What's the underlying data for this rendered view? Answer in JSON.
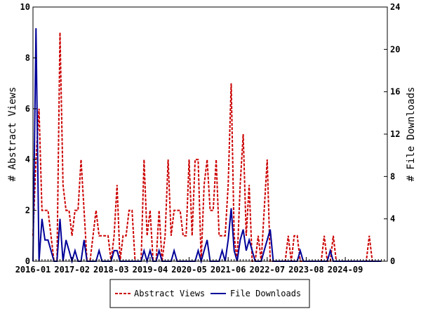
{
  "chart_data": {
    "type": "line",
    "ylabel": "# Abstract Views",
    "y2label": "# File Downloads",
    "ylim": [
      0,
      10
    ],
    "y2lim": [
      0,
      24
    ],
    "yticks": [
      "0",
      "2",
      "4",
      "6",
      "8",
      "10"
    ],
    "y2ticks": [
      "0",
      "4",
      "8",
      "12",
      "16",
      "20",
      "24"
    ],
    "xlim": [
      "2016-01",
      "2025-11"
    ],
    "xticks": [
      "2016-01",
      "2017-02",
      "2018-03",
      "2019-04",
      "2020-05",
      "2021-06",
      "2022-07",
      "2023-08",
      "2024-09"
    ],
    "legend_position": "bottom",
    "series": [
      {
        "name": "Abstract Views",
        "axis": "left",
        "color": "#cc0000",
        "style": "dashed",
        "x": [
          "2016-01",
          "2016-02",
          "2016-03",
          "2016-04",
          "2016-05",
          "2016-06",
          "2016-07",
          "2016-08",
          "2016-09",
          "2016-10",
          "2016-11",
          "2016-12",
          "2017-01",
          "2017-02",
          "2017-03",
          "2017-04",
          "2017-05",
          "2017-06",
          "2017-07",
          "2017-08",
          "2017-09",
          "2017-10",
          "2017-11",
          "2017-12",
          "2018-01",
          "2018-02",
          "2018-03",
          "2018-04",
          "2018-05",
          "2018-06",
          "2018-07",
          "2018-08",
          "2018-09",
          "2018-10",
          "2018-11",
          "2018-12",
          "2019-01",
          "2019-02",
          "2019-03",
          "2019-04",
          "2019-05",
          "2019-06",
          "2019-07",
          "2019-08",
          "2019-09",
          "2019-10",
          "2019-11",
          "2019-12",
          "2020-01",
          "2020-02",
          "2020-03",
          "2020-04",
          "2020-05",
          "2020-06",
          "2020-07",
          "2020-08",
          "2020-09",
          "2020-10",
          "2020-11",
          "2020-12",
          "2021-01",
          "2021-02",
          "2021-03",
          "2021-04",
          "2021-05",
          "2021-06",
          "2021-07",
          "2021-08",
          "2021-09",
          "2021-10",
          "2021-11",
          "2021-12",
          "2022-01",
          "2022-02",
          "2022-03",
          "2022-04",
          "2022-05",
          "2022-06",
          "2022-07",
          "2022-08",
          "2022-09",
          "2022-10",
          "2022-11",
          "2022-12",
          "2023-01",
          "2023-02",
          "2023-03",
          "2023-04",
          "2023-05",
          "2023-06",
          "2023-07",
          "2023-08",
          "2023-09",
          "2023-10",
          "2023-11",
          "2023-12",
          "2024-01",
          "2024-02",
          "2024-03",
          "2024-04",
          "2024-05",
          "2024-06",
          "2024-07",
          "2024-08",
          "2024-09",
          "2024-10",
          "2024-11",
          "2024-12",
          "2025-01",
          "2025-02",
          "2025-03",
          "2025-04",
          "2025-05",
          "2025-06",
          "2025-07",
          "2025-08",
          "2025-09"
        ],
        "values": [
          1,
          4,
          6,
          2,
          2,
          2,
          1,
          0,
          0,
          9,
          3,
          2,
          2,
          1,
          2,
          2,
          4,
          2,
          0,
          0,
          1,
          2,
          1,
          1,
          1,
          1,
          0,
          1,
          3,
          0,
          1,
          1,
          2,
          2,
          0,
          0,
          0,
          4,
          1,
          2,
          0,
          0,
          2,
          0,
          1,
          4,
          1,
          2,
          2,
          2,
          1,
          1,
          4,
          1,
          4,
          4,
          0,
          3,
          4,
          2,
          2,
          4,
          1,
          1,
          1,
          3,
          7,
          1,
          0,
          3,
          5,
          1,
          3,
          0,
          0,
          1,
          0,
          2,
          4,
          0,
          0,
          0,
          0,
          0,
          0,
          1,
          0,
          1,
          1,
          0,
          0,
          0,
          0,
          0,
          0,
          0,
          0,
          1,
          0,
          0,
          1,
          0,
          0,
          0,
          0,
          0,
          0,
          0,
          0,
          0,
          0,
          0,
          1,
          0,
          0,
          0,
          0
        ]
      },
      {
        "name": "File Downloads",
        "axis": "right",
        "color": "#000099",
        "style": "solid",
        "x": [
          "2016-01",
          "2016-02",
          "2016-03",
          "2016-04",
          "2016-05",
          "2016-06",
          "2016-07",
          "2016-08",
          "2016-09",
          "2016-10",
          "2016-11",
          "2016-12",
          "2017-01",
          "2017-02",
          "2017-03",
          "2017-04",
          "2017-05",
          "2017-06",
          "2017-07",
          "2017-08",
          "2017-09",
          "2017-10",
          "2017-11",
          "2017-12",
          "2018-01",
          "2018-02",
          "2018-03",
          "2018-04",
          "2018-05",
          "2018-06",
          "2018-07",
          "2018-08",
          "2018-09",
          "2018-10",
          "2018-11",
          "2018-12",
          "2019-01",
          "2019-02",
          "2019-03",
          "2019-04",
          "2019-05",
          "2019-06",
          "2019-07",
          "2019-08",
          "2019-09",
          "2019-10",
          "2019-11",
          "2019-12",
          "2020-01",
          "2020-02",
          "2020-03",
          "2020-04",
          "2020-05",
          "2020-06",
          "2020-07",
          "2020-08",
          "2020-09",
          "2020-10",
          "2020-11",
          "2020-12",
          "2021-01",
          "2021-02",
          "2021-03",
          "2021-04",
          "2021-05",
          "2021-06",
          "2021-07",
          "2021-08",
          "2021-09",
          "2021-10",
          "2021-11",
          "2021-12",
          "2022-01",
          "2022-02",
          "2022-03",
          "2022-04",
          "2022-05",
          "2022-06",
          "2022-07",
          "2022-08",
          "2022-09",
          "2022-10",
          "2022-11",
          "2022-12",
          "2023-01",
          "2023-02",
          "2023-03",
          "2023-04",
          "2023-05",
          "2023-06",
          "2023-07",
          "2023-08",
          "2023-09",
          "2023-10",
          "2023-11",
          "2023-12",
          "2024-01",
          "2024-02",
          "2024-03",
          "2024-04",
          "2024-05",
          "2024-06",
          "2024-07",
          "2024-08",
          "2024-09",
          "2024-10",
          "2024-11",
          "2024-12",
          "2025-01",
          "2025-02",
          "2025-03",
          "2025-04",
          "2025-05",
          "2025-06",
          "2025-07",
          "2025-08",
          "2025-09"
        ],
        "values": [
          0,
          22,
          0,
          4,
          2,
          2,
          1,
          0,
          0,
          4,
          0,
          2,
          1,
          0,
          1,
          0,
          0,
          2,
          0,
          0,
          0,
          0,
          1,
          0,
          0,
          0,
          0,
          1,
          1,
          0,
          0,
          0,
          0,
          0,
          0,
          0,
          0,
          1,
          0,
          1,
          0,
          0,
          1,
          0,
          0,
          0,
          0,
          1,
          0,
          0,
          0,
          0,
          0,
          0,
          0,
          1,
          0,
          1,
          2,
          0,
          0,
          0,
          0,
          1,
          0,
          2,
          5,
          1,
          0,
          2,
          3,
          1,
          2,
          1,
          0,
          0,
          0,
          1,
          2,
          3,
          0,
          0,
          0,
          0,
          0,
          0,
          0,
          0,
          0,
          1,
          0,
          0,
          0,
          0,
          0,
          0,
          0,
          0,
          0,
          1,
          0,
          0,
          0,
          0,
          0,
          0,
          0,
          0,
          0,
          0,
          0,
          0,
          0,
          0,
          0,
          0,
          0
        ]
      }
    ]
  }
}
